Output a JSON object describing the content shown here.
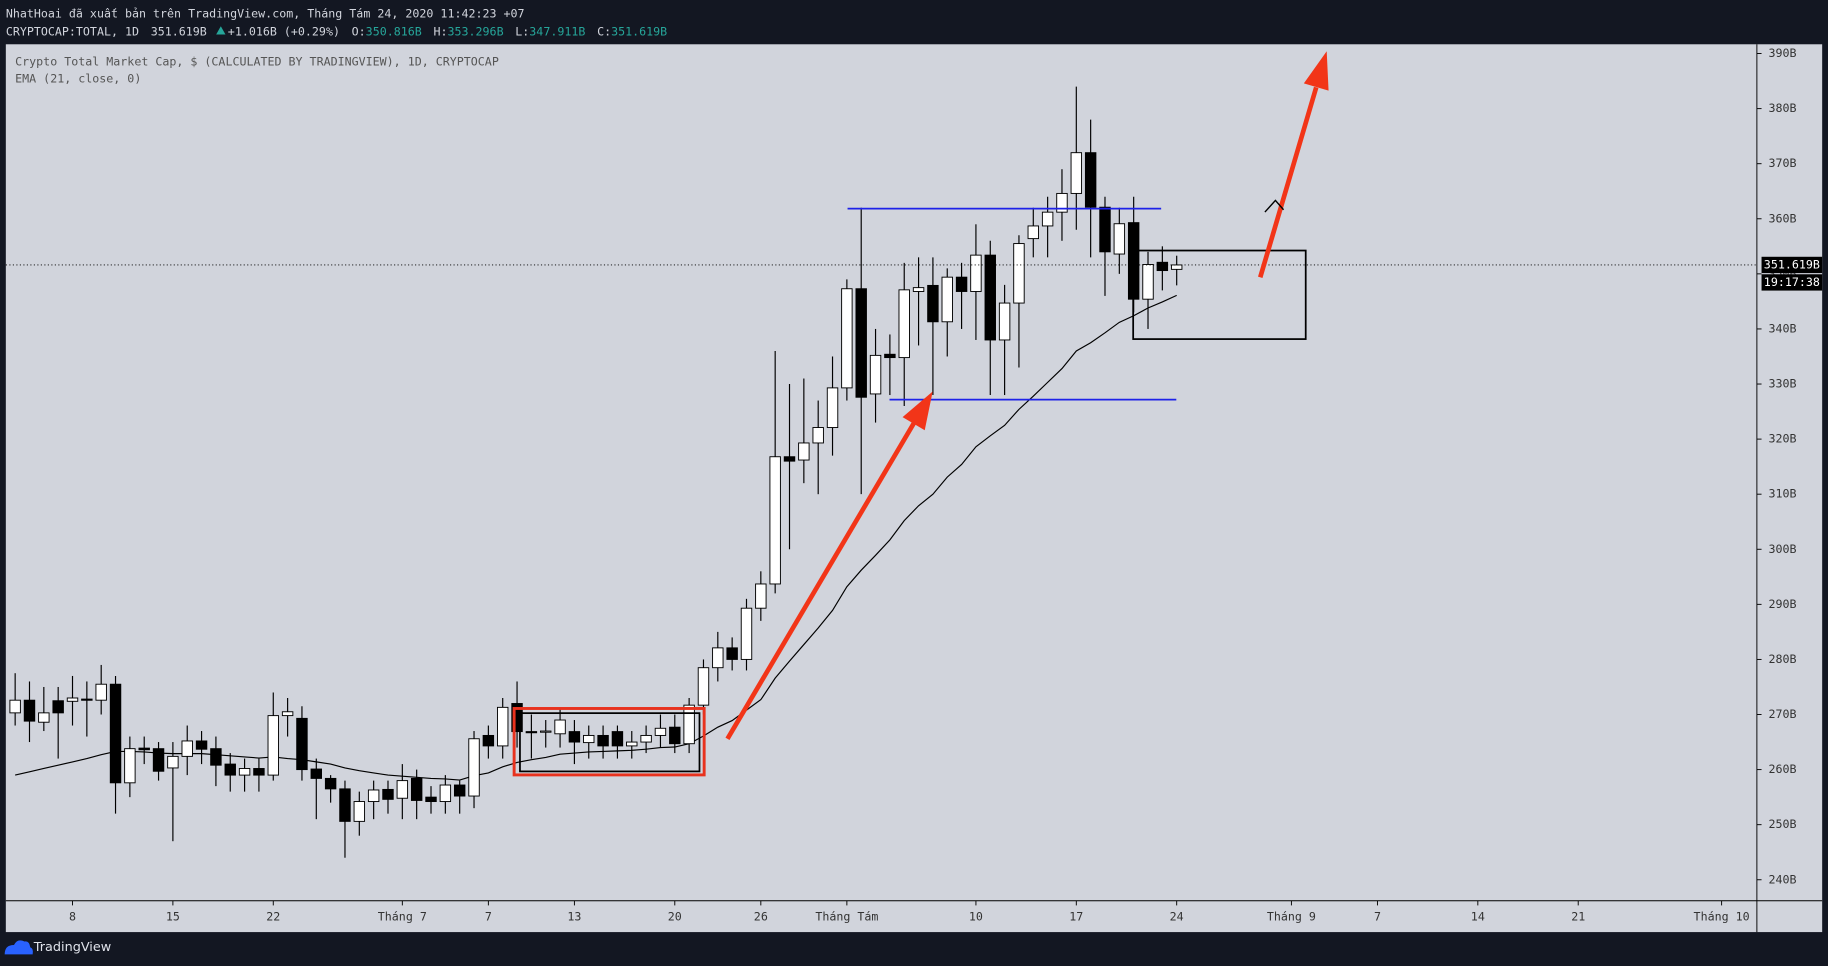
{
  "header": {
    "byline": "NhatHoai đã xuất bản trên TradingView.com, Tháng Tám 24, 2020 11:42:23 +07",
    "symbol": "CRYPTOCAP:TOTAL, 1D",
    "price": "351.619B",
    "change": "+1.016B (+0.29%)",
    "ohlc": [
      {
        "key": "O:",
        "value": "350.816B"
      },
      {
        "key": "H:",
        "value": "353.296B"
      },
      {
        "key": "L:",
        "value": "347.911B"
      },
      {
        "key": "C:",
        "value": "351.619B"
      }
    ]
  },
  "footer": {
    "brand": "TradingView"
  },
  "chart_data": {
    "type": "candlestick",
    "title": "Crypto Total Market Cap, $ (CALCULATED BY TRADINGVIEW), 1D, CRYPTOCAP",
    "x": [
      0,
      1,
      2,
      3,
      4,
      5,
      6,
      7,
      8,
      9,
      10,
      11,
      12,
      13,
      14,
      15,
      16,
      17,
      18,
      19,
      20,
      21,
      22,
      23,
      24,
      25,
      26,
      27,
      28,
      29,
      30,
      31,
      32,
      33,
      34,
      35,
      36,
      37,
      38,
      39,
      40,
      41,
      42,
      43,
      44,
      45,
      46,
      47,
      48,
      49,
      50,
      51,
      52,
      53,
      54,
      55,
      56,
      57,
      58,
      59,
      60,
      61,
      62,
      63,
      64,
      65,
      66,
      67,
      68,
      69,
      70,
      71,
      72,
      73,
      74,
      75,
      76,
      77,
      78,
      79,
      80,
      81
    ],
    "open": [
      270.3,
      272.6,
      268.6,
      272.5,
      272.4,
      272.8,
      272.6,
      275.5,
      257.6,
      263.9,
      263.8,
      260.3,
      262.4,
      265.2,
      263.8,
      261,
      259,
      260.2,
      259,
      269.8,
      269.3,
      260.1,
      258.4,
      256.5,
      250.6,
      254.2,
      256.4,
      254.8,
      258.4,
      255,
      254.2,
      257.2,
      255.2,
      266.2,
      264.3,
      272,
      266.9,
      266.9,
      266.5,
      266.9,
      264.9,
      266.2,
      266.9,
      264.3,
      265,
      266.2,
      267.7,
      264.7,
      271.7,
      278.5,
      282.1,
      280,
      289.3,
      293.7,
      316.8,
      316.2,
      319.3,
      322.1,
      329.3,
      347.3,
      328.2,
      335.4,
      334.8,
      346.8,
      347.9,
      341.3,
      349.4,
      346.8,
      353.4,
      338,
      344.7,
      356.4,
      358.7,
      361.2,
      364.6,
      372,
      362.1,
      353.6,
      359.3,
      345.4,
      352.1,
      350.816
    ],
    "high": [
      277.5,
      276,
      275,
      275,
      277,
      276,
      279,
      277,
      266,
      266,
      265,
      265,
      268,
      267,
      266,
      263,
      262,
      262,
      274,
      273,
      271.5,
      262,
      259,
      258,
      256,
      258,
      258,
      261,
      260,
      257,
      259,
      258,
      267,
      268,
      273,
      276,
      270,
      269,
      271,
      269,
      268,
      268,
      268,
      267,
      268,
      270,
      270,
      273,
      280,
      285,
      284,
      291,
      296,
      336,
      330,
      331,
      327,
      335,
      349,
      362,
      340,
      339,
      352,
      353,
      353,
      351,
      352,
      359,
      356,
      348,
      357,
      362,
      364,
      369,
      384,
      378,
      364,
      362,
      364,
      354,
      355,
      353.296
    ],
    "low": [
      268,
      265,
      267,
      262,
      268,
      266,
      270,
      252,
      255,
      261,
      258,
      247,
      259,
      261,
      257,
      256,
      256,
      256,
      258,
      266,
      258,
      251,
      254,
      244,
      248,
      251,
      252,
      251,
      251,
      252,
      252,
      252,
      253,
      262,
      262,
      264,
      262,
      264,
      264,
      261,
      262,
      262,
      262,
      262,
      263,
      264,
      263,
      263,
      270,
      276,
      278,
      278,
      287,
      292,
      300,
      312,
      310,
      317,
      327,
      310,
      323,
      328,
      326,
      337,
      328,
      335,
      340,
      338,
      328,
      328,
      333,
      353,
      353,
      356,
      358,
      353,
      346,
      350,
      343,
      340,
      347,
      347.911
    ],
    "close": [
      272.6,
      268.8,
      270.3,
      270.3,
      273,
      272.6,
      275.5,
      257.6,
      263.8,
      263.6,
      259.7,
      262.4,
      265.2,
      263.7,
      260.8,
      259,
      260.2,
      259,
      269.8,
      270.5,
      260,
      258.4,
      256.5,
      250.6,
      254.2,
      256.3,
      254.6,
      258,
      254.4,
      254.2,
      257.2,
      255.2,
      265.6,
      264.3,
      271.3,
      266.9,
      266.8,
      267,
      269,
      265,
      266.2,
      264.3,
      264.3,
      265,
      266.2,
      267.5,
      264.7,
      271.7,
      278.5,
      282.1,
      280,
      289.3,
      293.7,
      316.8,
      316,
      319.3,
      322.1,
      329.3,
      347.3,
      327.6,
      335.2,
      334.8,
      347.1,
      347.5,
      341.3,
      349.4,
      346.8,
      353.4,
      338,
      344.7,
      355.5,
      358.7,
      361.2,
      364.6,
      372,
      362.1,
      354,
      359.1,
      345.4,
      351.7,
      350.6,
      351.619
    ],
    "up_color": "#ffffff",
    "down_color": "#000000",
    "series": [
      {
        "name": "EMA (21, close, 0)",
        "color": "#000000",
        "values": [
          259.0,
          259.6,
          260.2,
          260.8,
          261.4,
          262.0,
          262.7,
          263.3,
          263.3,
          263.2,
          263.0,
          262.9,
          262.9,
          262.9,
          262.7,
          262.5,
          262.3,
          262.1,
          262.3,
          262.0,
          261.8,
          261.4,
          261.0,
          260.3,
          259.8,
          259.4,
          259.0,
          258.8,
          258.6,
          258.4,
          258.3,
          258.1,
          258.9,
          259.4,
          260.5,
          261.3,
          261.8,
          262.2,
          262.8,
          263.0,
          263.2,
          263.3,
          263.4,
          263.5,
          263.7,
          264.0,
          264.1,
          264.7,
          266.1,
          267.7,
          268.9,
          270.8,
          272.7,
          276.6,
          279.7,
          282.7,
          285.7,
          288.9,
          293.2,
          296.2,
          298.9,
          301.7,
          305.2,
          307.9,
          310.0,
          313.1,
          315.4,
          318.6,
          320.6,
          322.5,
          325.4,
          327.8,
          330.3,
          332.8,
          336.0,
          337.5,
          339.3,
          341.2,
          342.4,
          343.8,
          344.9,
          346.1
        ]
      }
    ],
    "xlim": [
      -0.65,
      121.46
    ],
    "xticks": [
      {
        "value": 4,
        "label": "8"
      },
      {
        "value": 11,
        "label": "15"
      },
      {
        "value": 18,
        "label": "22"
      },
      {
        "value": 27,
        "label": "Tháng 7"
      },
      {
        "value": 33,
        "label": "7"
      },
      {
        "value": 39,
        "label": "13"
      },
      {
        "value": 46,
        "label": "20"
      },
      {
        "value": 52,
        "label": "26"
      },
      {
        "value": 58,
        "label": "Tháng Tám"
      },
      {
        "value": 67,
        "label": "10"
      },
      {
        "value": 74,
        "label": "17"
      },
      {
        "value": 81,
        "label": "24"
      },
      {
        "value": 89,
        "label": "Tháng 9"
      },
      {
        "value": 95,
        "label": "7"
      },
      {
        "value": 102,
        "label": "14"
      },
      {
        "value": 109,
        "label": "21"
      },
      {
        "value": 119,
        "label": "Tháng 10"
      }
    ],
    "ylim": [
      236.19,
      391.68
    ],
    "yticks": [
      {
        "value": 240,
        "label": "240B"
      },
      {
        "value": 250,
        "label": "250B"
      },
      {
        "value": 260,
        "label": "260B"
      },
      {
        "value": 270,
        "label": "270B"
      },
      {
        "value": 280,
        "label": "280B"
      },
      {
        "value": 290,
        "label": "290B"
      },
      {
        "value": 300,
        "label": "300B"
      },
      {
        "value": 310,
        "label": "310B"
      },
      {
        "value": 320,
        "label": "320B"
      },
      {
        "value": 330,
        "label": "330B"
      },
      {
        "value": 340,
        "label": "340B"
      },
      {
        "value": 350,
        "label": "350B"
      },
      {
        "value": 360,
        "label": "360B"
      },
      {
        "value": 370,
        "label": "370B"
      },
      {
        "value": 380,
        "label": "380B"
      },
      {
        "value": 390,
        "label": "390B"
      }
    ],
    "last_price_label": "351.619B",
    "countdown": "19:17:38"
  }
}
